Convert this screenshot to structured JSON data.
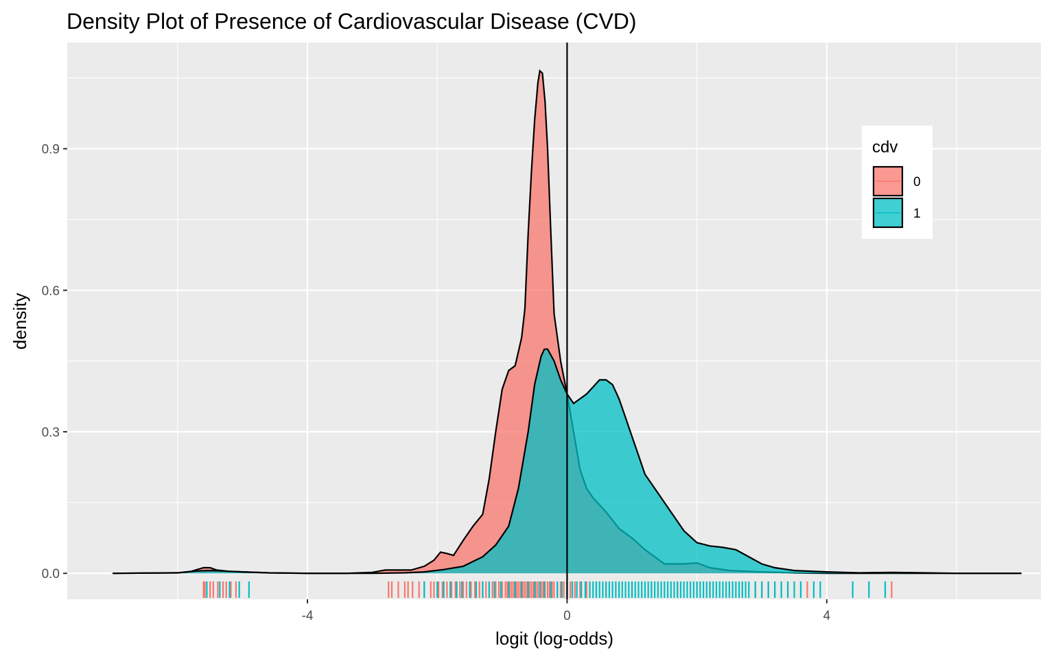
{
  "chart_data": {
    "type": "area",
    "title": "Density Plot of Presence of Cardiovascular Disease (CVD)",
    "xlabel": "logit (log-odds)",
    "ylabel": "density",
    "xlim": [
      -7.7,
      7.3
    ],
    "ylim": [
      -0.055,
      1.125
    ],
    "x_ticks": [
      -4,
      0,
      4
    ],
    "x_tick_labels": [
      "-4",
      "0",
      "4"
    ],
    "y_ticks": [
      0.0,
      0.3,
      0.6,
      0.9
    ],
    "y_tick_labels": [
      "0.0",
      "0.3",
      "0.6",
      "0.9"
    ],
    "vline_x": 0,
    "grid": true,
    "legend": {
      "title": "cdv",
      "placement": "right",
      "entries": [
        "0",
        "1"
      ]
    },
    "colors": {
      "0": "#F8766D",
      "1": "#00BFC4",
      "panel": "#EBEBEB",
      "grid": "#FFFFFF"
    },
    "series": [
      {
        "name": "0",
        "x": [
          -7.0,
          -6.0,
          -5.8,
          -5.6,
          -5.5,
          -5.4,
          -5.2,
          -5.0,
          -4.6,
          -4.0,
          -3.4,
          -3.0,
          -2.8,
          -2.6,
          -2.4,
          -2.2,
          -2.05,
          -1.95,
          -1.85,
          -1.75,
          -1.6,
          -1.45,
          -1.3,
          -1.2,
          -1.1,
          -1.0,
          -0.9,
          -0.8,
          -0.75,
          -0.7,
          -0.65,
          -0.6,
          -0.55,
          -0.5,
          -0.45,
          -0.42,
          -0.38,
          -0.34,
          -0.3,
          -0.25,
          -0.2,
          -0.1,
          0.0,
          0.1,
          0.2,
          0.3,
          0.4,
          0.6,
          0.8,
          1.0,
          1.2,
          1.4,
          1.5,
          1.6,
          1.8,
          2.0,
          2.2,
          2.5,
          3.0,
          3.5,
          4.0,
          5.0,
          6.0,
          7.0
        ],
        "y": [
          0.0,
          0.001,
          0.004,
          0.012,
          0.012,
          0.007,
          0.004,
          0.003,
          0.001,
          0.0,
          0.0,
          0.002,
          0.007,
          0.007,
          0.007,
          0.015,
          0.028,
          0.045,
          0.042,
          0.038,
          0.07,
          0.1,
          0.125,
          0.2,
          0.3,
          0.39,
          0.43,
          0.44,
          0.47,
          0.5,
          0.56,
          0.72,
          0.85,
          0.96,
          1.04,
          1.065,
          1.06,
          1.0,
          0.9,
          0.72,
          0.55,
          0.45,
          0.38,
          0.3,
          0.22,
          0.18,
          0.16,
          0.13,
          0.095,
          0.075,
          0.05,
          0.03,
          0.02,
          0.02,
          0.02,
          0.022,
          0.012,
          0.006,
          0.003,
          0.001,
          0.0,
          0.0,
          0.0,
          0.0
        ]
      },
      {
        "name": "1",
        "x": [
          -7.0,
          -6.0,
          -5.7,
          -5.5,
          -5.3,
          -5.0,
          -4.6,
          -4.0,
          -3.0,
          -2.5,
          -2.2,
          -1.9,
          -1.6,
          -1.3,
          -1.1,
          -0.9,
          -0.75,
          -0.6,
          -0.5,
          -0.4,
          -0.35,
          -0.3,
          -0.2,
          -0.1,
          0.0,
          0.1,
          0.2,
          0.3,
          0.4,
          0.5,
          0.6,
          0.7,
          0.8,
          0.9,
          1.0,
          1.1,
          1.2,
          1.4,
          1.6,
          1.8,
          2.0,
          2.2,
          2.4,
          2.6,
          2.8,
          3.0,
          3.2,
          3.5,
          4.0,
          4.5,
          5.0,
          5.5,
          6.0,
          7.0
        ],
        "y": [
          0.0,
          0.001,
          0.005,
          0.006,
          0.005,
          0.003,
          0.001,
          0.0,
          0.0,
          0.001,
          0.003,
          0.008,
          0.015,
          0.035,
          0.06,
          0.1,
          0.18,
          0.3,
          0.4,
          0.46,
          0.475,
          0.475,
          0.45,
          0.41,
          0.38,
          0.36,
          0.37,
          0.38,
          0.395,
          0.41,
          0.41,
          0.4,
          0.37,
          0.33,
          0.29,
          0.25,
          0.21,
          0.17,
          0.13,
          0.09,
          0.065,
          0.058,
          0.055,
          0.05,
          0.035,
          0.02,
          0.012,
          0.006,
          0.003,
          0.001,
          0.002,
          0.001,
          0.0,
          0.0
        ]
      }
    ],
    "rug": {
      "0": [
        -5.6,
        -5.58,
        -5.5,
        -5.45,
        -5.38,
        -5.3,
        -5.25,
        -5.18,
        -5.1,
        -2.75,
        -2.7,
        -2.6,
        -2.5,
        -2.45,
        -2.38,
        -2.28,
        -2.2,
        -2.1,
        -2.05,
        -1.98,
        -1.92,
        -1.85,
        -1.78,
        -1.72,
        -1.65,
        -1.6,
        -1.55,
        -1.48,
        -1.42,
        -1.35,
        -1.3,
        -1.25,
        -1.2,
        -1.15,
        -1.1,
        -1.05,
        -1.0,
        -0.95,
        -0.92,
        -0.88,
        -0.85,
        -0.82,
        -0.78,
        -0.75,
        -0.72,
        -0.68,
        -0.65,
        -0.62,
        -0.58,
        -0.55,
        -0.52,
        -0.48,
        -0.45,
        -0.42,
        -0.4,
        -0.37,
        -0.34,
        -0.3,
        -0.27,
        -0.23,
        -0.2,
        -0.15,
        -0.1,
        -0.05,
        0.05,
        0.12,
        0.2,
        0.3,
        0.45,
        0.6,
        0.8,
        1.0,
        1.3,
        1.7,
        2.0,
        2.2,
        2.5,
        2.7,
        2.9,
        3.0,
        3.1,
        3.2,
        3.3,
        3.4,
        3.6,
        3.7,
        5.0
      ],
      "1": [
        -5.55,
        -5.35,
        -5.2,
        -5.05,
        -4.9,
        -2.2,
        -2.0,
        -1.9,
        -1.8,
        -1.7,
        -1.62,
        -1.5,
        -1.4,
        -1.3,
        -1.2,
        -1.12,
        -1.02,
        -0.9,
        -0.8,
        -0.7,
        -0.6,
        -0.5,
        -0.42,
        -0.35,
        -0.25,
        -0.15,
        -0.08,
        0.0,
        0.08,
        0.15,
        0.22,
        0.28,
        0.35,
        0.4,
        0.45,
        0.5,
        0.55,
        0.6,
        0.65,
        0.7,
        0.75,
        0.8,
        0.85,
        0.9,
        0.95,
        1.0,
        1.05,
        1.1,
        1.15,
        1.2,
        1.25,
        1.3,
        1.35,
        1.4,
        1.45,
        1.5,
        1.55,
        1.6,
        1.65,
        1.7,
        1.75,
        1.8,
        1.85,
        1.9,
        1.95,
        2.0,
        2.05,
        2.1,
        2.15,
        2.2,
        2.25,
        2.3,
        2.35,
        2.4,
        2.45,
        2.5,
        2.55,
        2.6,
        2.65,
        2.7,
        2.75,
        2.8,
        2.9,
        3.0,
        3.1,
        3.2,
        3.3,
        3.4,
        3.5,
        3.6,
        3.8,
        3.9,
        4.4,
        4.65,
        4.9
      ]
    }
  }
}
